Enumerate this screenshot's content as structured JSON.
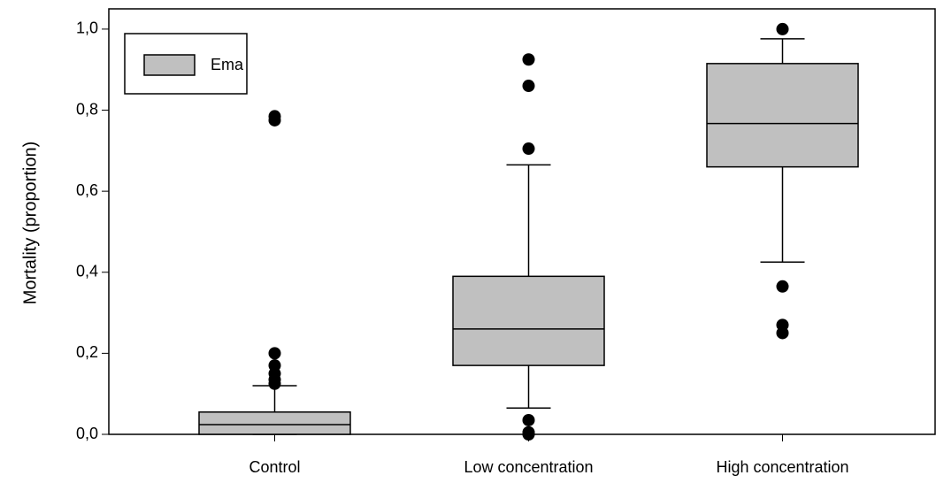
{
  "chart_data": {
    "type": "box",
    "ylabel": "Mortality (proportion)",
    "categories": [
      "Control",
      "Low concentration",
      "High concentration"
    ],
    "ylim": [
      0,
      1.05
    ],
    "yticks": [
      {
        "value": 0,
        "label": "0,0"
      },
      {
        "value": 0.2,
        "label": "0,2"
      },
      {
        "value": 0.4,
        "label": "0,4"
      },
      {
        "value": 0.6,
        "label": "0,6"
      },
      {
        "value": 0.8,
        "label": "0,8"
      },
      {
        "value": 1,
        "label": "1,0"
      }
    ],
    "legend": "upper left",
    "series": [
      {
        "name": "Ema",
        "color": "#c0c0c0",
        "min": [
          0,
          0.065,
          0.425
        ],
        "q1": [
          0,
          0.17,
          0.66
        ],
        "median": [
          0.024,
          0.26,
          0.767
        ],
        "q3": [
          0.055,
          0.39,
          0.915
        ],
        "max": [
          0.12,
          0.665,
          0.976
        ],
        "outliers": [
          [
            0.785,
            0.775,
            0.2,
            0.17,
            0.15,
            0.135,
            0.125
          ],
          [
            0.925,
            0.86,
            0.705,
            0.035,
            0.005,
            0
          ],
          [
            1,
            0.365,
            0.27,
            0.25
          ]
        ]
      }
    ]
  }
}
